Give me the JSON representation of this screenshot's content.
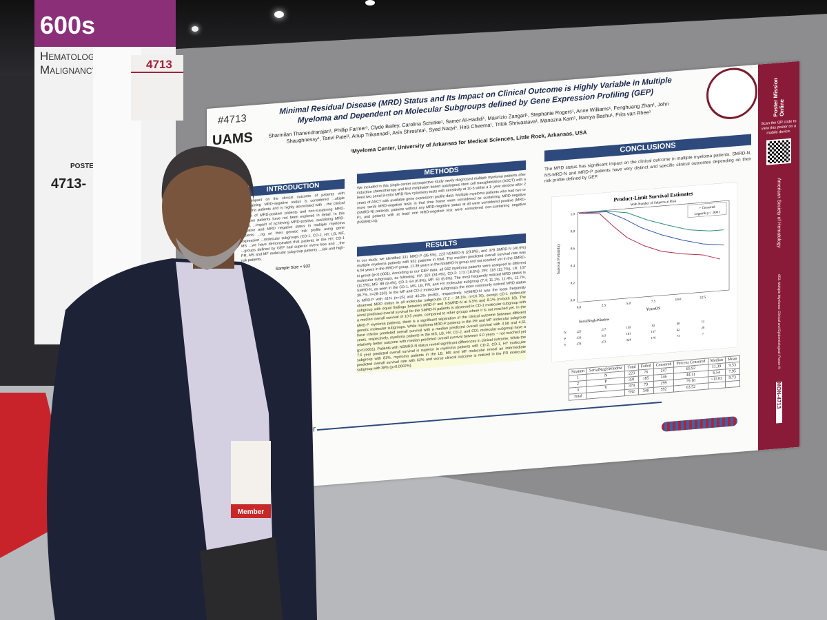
{
  "sign": {
    "number": "600s",
    "category": "Hematologic Malignancy",
    "poster_label": "POSTER",
    "poster_range": "4713-"
  },
  "board_tag": "4713",
  "poster": {
    "id": "#4713",
    "logo": "UAMS",
    "title": "Minimal Residual Disease (MRD) Status and Its Impact on Clinical Outcome is Highly Variable in Multiple Myeloma and Dependent on Molecular Subgroups defined by Gene Expression Profiling (GEP)",
    "authors": "Sharmilan Thanendrarajan¹, Phillip Farmer¹, Clyde Bailey, Carolina Schinke¹, Samer Al-Hadidi¹, Maurizio Zangari¹, Stephanie Rogers¹, Anne Williams¹, Fenghuang Zhan¹, John Shaughnessy¹, Tanvi Patel¹, Anup Trikannad¹, Asis Shreshta¹, Syed Naqvi¹, Hira Cheema¹, Trilok Shrivastava¹, Manozna Karri¹, Ramya Bachu¹, Frits van Rhee¹",
    "affiliation": "¹Myeloma Center, University of Arkansas for Medical Sciences, Little Rock, Arkansas, USA",
    "introduction": {
      "heading": "INTRODUCTION",
      "text": "...nt impact on the clinical outcome of patients with ...sustaining MRD-negative status is considered ...ultiple myeloma patients and is highly associated with ...the clinical impact of MRD-positive patients and non-sustaining MRD-negative patients have not been explored in detail. In this study, ...impact of achieving MRD-positive, sustaining MRD-negative and MRD negative status in multiple myeloma patients ...ng on their genetic risk profile using gene expression ...molecular subgroups (CD-1, CD-2, HY, LB, MF, MS ...we have demonstrated that patients in the HY, CD-1 ...groups defined by GEP had superior event free and ...the PR, MS and MF molecular subgroup patients ...risk and high-risk patients.",
      "table_title": "Sample Size = 932"
    },
    "methods": {
      "heading": "METHODS",
      "text": "We included in this single-center retrospective study newly diagnosed multiple myeloma patients after induction chemotherapy and first melphalan based autologous stem cell transplantation (ASCT) with a least two serial 8-color MRD flow cytometry tests with sensitivity at 10-5 within a 1- year window after 2 years of ASCT with available gene expression profile data. Multiple myeloma patients who had two or more serial MRD-negative tests in that time frame were considered as sustaining MRD-negative (SMRD-N) patients, patients without any MRD-negative status at all were considered positive (MRD-P), and patients with at least one MRD-negative test were considered non-sustaining negative (NSMRD-N)."
    },
    "results": {
      "heading": "RESULTS",
      "text": "In our study, we identified 331 MRD-P (35.5%), 223 NSMRD-N (23.9%), and 378 SMRD-N (40.6%) multiple myeloma patients with 932 patients in total. The median predicted overall survival rate was 6.54 years in the MRD-P group, 11.39 years in the NSMRD-N group and not reached yet in the SMRD-N group (p<0.0001). According to our GEP data, all 932 myeloma patients were assigned to different molecular subgroups, as following: HY: 321 (34.4%), CD-2: 173 (18.6%), PR: 118 (12.7%), LB: 107 (11.5%), MS: 88 (9.4%), CD-1: 64 (6.9%), MF: 61 (6.6%). The most frequently noticed MRD status is SMRD-N, as seen in the CD-1, MS, LB, PR, and HY molecular subgroup (7.4; 11.1%, 11.4%, 12.7%, 39.7%, n=28-150). In the MF and CD-2 molecular subgroups the most commonly noticed MRD status is MRD-P with 41% (n=25) and 46.2% (n=80), respectively. NSMRD-N was the least frequently observed MRD status in all molecular subgroups (7.2 – 34.1%, n=16-76), except CD-1 molecular subgroup with equal findings between MRD-P and NSMRD-N at 5.5% and 8.1% (n=both 18). The worst predicted overall survival for the SMRD-N patients is observed in CD-1 molecular subgroup with a median overall survival of 10.5 years, compared to other groups where it is not reached yet. In the MRD-P myeloma patients, there is a significant separation of the clinical outcome between different genetic molecular subgroups. While myeloma MRD-P patients in the PR and MF molecular subgroup have inferior predicted overall survival with a median predicted overall survival with 3.58 and 4.61 years, respectively, myeloma patients in the MS, LB, HY, CD-2, and CD1 molecular subgroup have a relatively better outcome with median predicted overall survival between 6.0 years – not reached yet (p<0.0001). Patients with NSMRD-N status reveal significant differences in clinical outcome. While the 7.5 year predicted overall survival is superior in myeloma patients with CD-2, CD-1, HY molecular subgroup with 81%, myeloma patients in the LB, MS and MF molecular reveal an intermediate predicted overall survival rate with 62% and worse clinical outcome is noticed in the PR molecular subgroup with 38% (p=0.0002%)."
    },
    "conclusions": {
      "heading": "CONCLUSIONS",
      "text": "The MRD status has significant impact on the clinical outcome in multiple myeloma patients. SMRD-N, NS-MRD-N and MRD-P patients have very distinct and specific clinical outcomes depending on their risk profile defined by GEP."
    },
    "km_chart": {
      "title": "Product-Limit Survival Estimates",
      "subtitle": "With Number of Subjects at Risk",
      "legend": [
        "+ Censored",
        "Logrank p < .0001"
      ],
      "y_label": "Survival Probability",
      "x_label": "YearsOS",
      "x_ticks": [
        "0.0",
        "2.5",
        "5.0",
        "7.5",
        "10.0",
        "12.5"
      ],
      "y_ticks": [
        "1.0",
        "0.8",
        "0.6",
        "0.4",
        "0.2",
        "0.0"
      ],
      "at_risk_header": "SerialNeglsWindow",
      "at_risk_rows": [
        [
          "N",
          "223",
          "217",
          "159",
          "92",
          "40",
          "12"
        ],
        [
          "P",
          "331",
          "313",
          "181",
          "137",
          "42",
          "20"
        ],
        [
          "Y",
          "378",
          "373",
          "324",
          "176",
          "73",
          "7"
        ]
      ]
    },
    "survival_table": {
      "columns": [
        "Stratum",
        "SerialNeglsWindow",
        "Total",
        "Failed",
        "Censored",
        "Percent Censored",
        "Median",
        "Mean"
      ],
      "rows": [
        [
          "1",
          "N",
          "223",
          "76",
          "147",
          "65.92",
          "11.39",
          "9.53"
        ],
        [
          "2",
          "P",
          "331",
          "185",
          "146",
          "44.11",
          "6.54",
          "7.95"
        ],
        [
          "3",
          "Y",
          "378",
          "79",
          "299",
          "79.10",
          ">11.03",
          "9.73"
        ],
        [
          "Total",
          "",
          "932",
          "340",
          "592",
          "63.52",
          "",
          ""
        ]
      ]
    },
    "footer": "Center",
    "side_strip": {
      "brand": "Poster Mission Online",
      "qr_text": "Scan the QR code to view this poster on a mobile device.",
      "society": "American Society of Hematology",
      "session": "653. Multiple Myeloma: Clinical and Epidemiological: Poster III",
      "code": "MON-4713"
    }
  },
  "badge": "Member"
}
